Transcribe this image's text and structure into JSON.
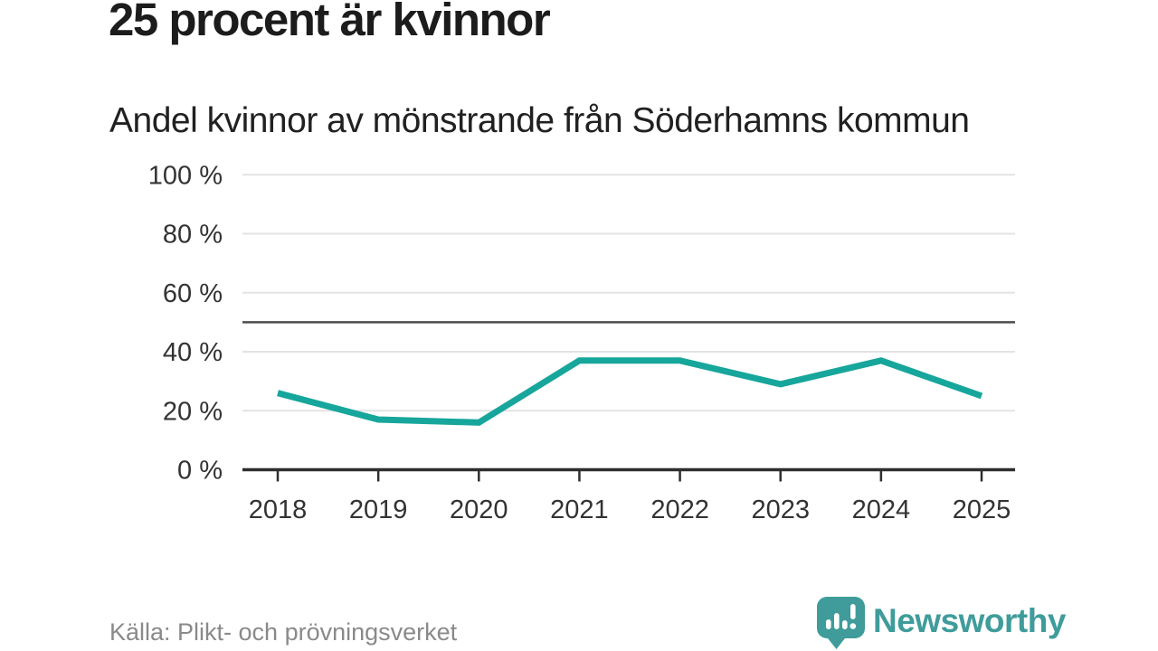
{
  "header": {
    "title": "25 procent är kvinnor",
    "subtitle": "Andel kvinnor av mönstrande från Söderhamns kommun"
  },
  "chart_data": {
    "type": "line",
    "title": "25 procent är kvinnor",
    "subtitle": "Andel kvinnor av mönstrande från Söderhamns kommun",
    "categories": [
      "2018",
      "2019",
      "2020",
      "2021",
      "2022",
      "2023",
      "2024",
      "2025"
    ],
    "series": [
      {
        "name": "Andel kvinnor av mönstrande",
        "values": [
          26,
          17,
          16,
          37,
          37,
          29,
          37,
          25
        ]
      }
    ],
    "unit": "%",
    "xlabel": "",
    "ylabel": "",
    "ylim": [
      0,
      100
    ],
    "y_ticks": [
      0,
      20,
      40,
      60,
      80,
      100
    ],
    "y_tick_format": "{v} %",
    "reference_line": 50,
    "grid": true,
    "legend_position": "none",
    "colors": {
      "line": "#17A69B",
      "grid": "#E3E3E3",
      "reference": "#4D4D4D",
      "axis": "#2E2E2E",
      "tick_label": "#333333"
    }
  },
  "footer": {
    "source": "Källa: Plikt- och prövningsverket",
    "brand_name": "Newsworthy",
    "brand_color": "#3F9C9B"
  }
}
